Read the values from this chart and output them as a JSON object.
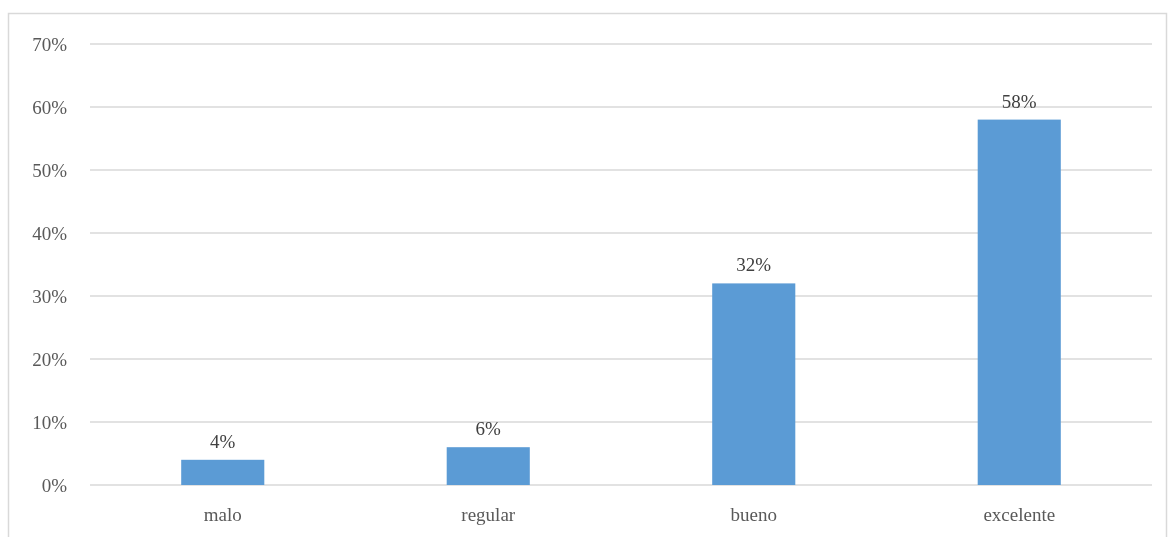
{
  "chart_data": {
    "type": "bar",
    "categories": [
      "malo",
      "regular",
      "bueno",
      "excelente"
    ],
    "values": [
      4,
      6,
      32,
      58
    ],
    "color": "#5b9bd5",
    "value_labels": [
      "4%",
      "6%",
      "32%",
      "58%"
    ],
    "ylim": [
      0,
      70
    ],
    "yticks": [
      {
        "value": 0,
        "label": "0%"
      },
      {
        "value": 10,
        "label": "10%"
      },
      {
        "value": 20,
        "label": "20%"
      },
      {
        "value": 30,
        "label": "30%"
      },
      {
        "value": 40,
        "label": "40%"
      },
      {
        "value": 50,
        "label": "50%"
      },
      {
        "value": 60,
        "label": "60%"
      },
      {
        "value": 70,
        "label": "70%"
      }
    ],
    "grid": "y"
  }
}
